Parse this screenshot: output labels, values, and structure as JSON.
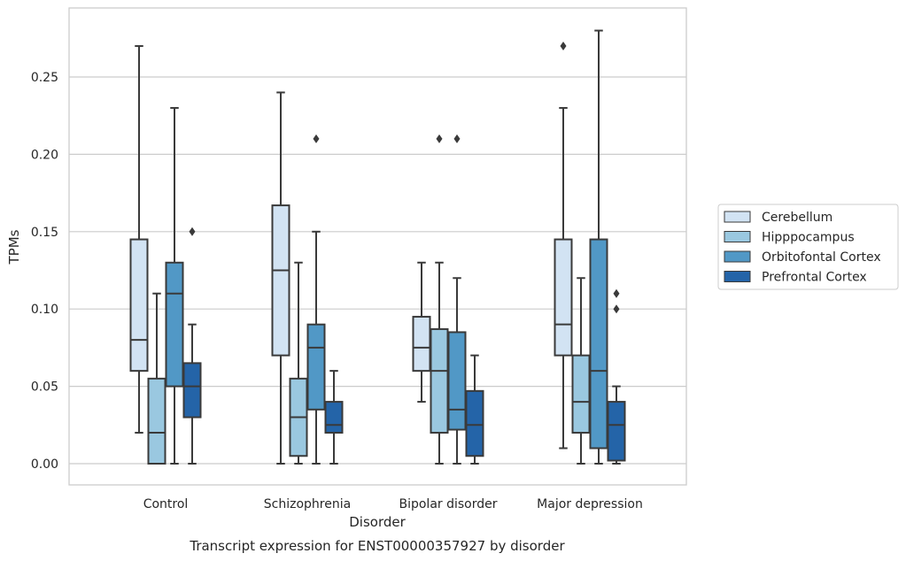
{
  "chart_data": {
    "type": "box",
    "title": "",
    "caption": "Transcript expression for ENST00000357927 by disorder",
    "xlabel": "Disorder",
    "ylabel": "TPMs",
    "ylim": [
      -0.014,
      0.294
    ],
    "yticks": [
      0.0,
      0.05,
      0.1,
      0.15,
      0.2,
      0.25
    ],
    "ytick_labels": [
      "0.00",
      "0.05",
      "0.10",
      "0.15",
      "0.20",
      "0.25"
    ],
    "grid": "horizontal",
    "legend_position": "right",
    "categories": [
      "Control",
      "Schizophrenia",
      "Bipolar disorder",
      "Major depression"
    ],
    "series": [
      {
        "name": "Cerebellum",
        "color": "#d2e3f3",
        "boxes": [
          {
            "whislo": 0.02,
            "q1": 0.06,
            "med": 0.08,
            "q3": 0.145,
            "whishi": 0.27,
            "fliers": []
          },
          {
            "whislo": 0.0,
            "q1": 0.07,
            "med": 0.125,
            "q3": 0.167,
            "whishi": 0.24,
            "fliers": []
          },
          {
            "whislo": 0.04,
            "q1": 0.06,
            "med": 0.075,
            "q3": 0.095,
            "whishi": 0.13,
            "fliers": []
          },
          {
            "whislo": 0.01,
            "q1": 0.07,
            "med": 0.09,
            "q3": 0.145,
            "whishi": 0.23,
            "fliers": [
              0.27
            ]
          }
        ]
      },
      {
        "name": "Hipppocampus",
        "color": "#9ac8e0",
        "boxes": [
          {
            "whislo": 0.0,
            "q1": 0.0,
            "med": 0.02,
            "q3": 0.055,
            "whishi": 0.11,
            "fliers": []
          },
          {
            "whislo": 0.0,
            "q1": 0.005,
            "med": 0.03,
            "q3": 0.055,
            "whishi": 0.13,
            "fliers": []
          },
          {
            "whislo": 0.0,
            "q1": 0.02,
            "med": 0.06,
            "q3": 0.087,
            "whishi": 0.13,
            "fliers": [
              0.21
            ]
          },
          {
            "whislo": 0.0,
            "q1": 0.02,
            "med": 0.04,
            "q3": 0.07,
            "whishi": 0.12,
            "fliers": []
          }
        ]
      },
      {
        "name": "Orbitofontal Cortex",
        "color": "#5198c6",
        "boxes": [
          {
            "whislo": 0.0,
            "q1": 0.05,
            "med": 0.11,
            "q3": 0.13,
            "whishi": 0.23,
            "fliers": []
          },
          {
            "whislo": 0.0,
            "q1": 0.035,
            "med": 0.075,
            "q3": 0.09,
            "whishi": 0.15,
            "fliers": [
              0.21
            ]
          },
          {
            "whislo": 0.0,
            "q1": 0.022,
            "med": 0.035,
            "q3": 0.085,
            "whishi": 0.12,
            "fliers": [
              0.21
            ]
          },
          {
            "whislo": 0.0,
            "q1": 0.01,
            "med": 0.06,
            "q3": 0.145,
            "whishi": 0.28,
            "fliers": []
          }
        ]
      },
      {
        "name": "Prefrontal Cortex",
        "color": "#2464a8",
        "boxes": [
          {
            "whislo": 0.0,
            "q1": 0.03,
            "med": 0.05,
            "q3": 0.065,
            "whishi": 0.09,
            "fliers": [
              0.15
            ]
          },
          {
            "whislo": 0.0,
            "q1": 0.02,
            "med": 0.025,
            "q3": 0.04,
            "whishi": 0.06,
            "fliers": []
          },
          {
            "whislo": 0.0,
            "q1": 0.005,
            "med": 0.025,
            "q3": 0.047,
            "whishi": 0.07,
            "fliers": []
          },
          {
            "whislo": 0.0,
            "q1": 0.002,
            "med": 0.025,
            "q3": 0.04,
            "whishi": 0.05,
            "fliers": [
              0.1,
              0.11
            ]
          }
        ]
      }
    ]
  }
}
